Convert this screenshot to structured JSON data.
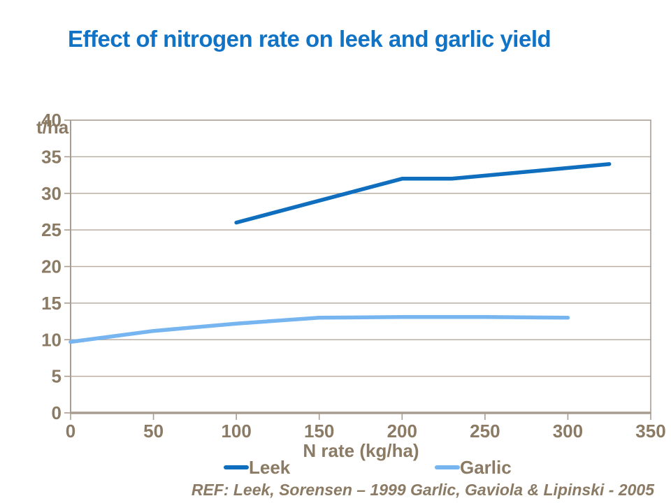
{
  "title": {
    "text": "Effect of nitrogen rate on leek and garlic yield",
    "color": "#1173C5"
  },
  "footer": {
    "ref": "REF: Leek, Sorensen – 1999 Garlic, Gaviola & Lipinski - 2005",
    "color": "#8B7A64"
  },
  "chart_data": {
    "type": "line",
    "title": "Effect of nitrogen rate on leek and garlic yield",
    "ylabel": "t/ha",
    "xlabel": "N rate (kg/ha)",
    "xlim": [
      0,
      350
    ],
    "ylim": [
      0,
      40
    ],
    "x_ticks": [
      0,
      50,
      100,
      150,
      200,
      250,
      300,
      350
    ],
    "y_ticks": [
      0,
      5,
      10,
      15,
      20,
      25,
      30,
      35,
      40
    ],
    "grid": "horizontal",
    "legend_position": "bottom-center",
    "series": [
      {
        "name": "Leek",
        "color": "#0F6EBD",
        "x": [
          100,
          200,
          230,
          325
        ],
        "values": [
          26,
          32,
          32,
          34
        ]
      },
      {
        "name": "Garlic",
        "color": "#76B5F0",
        "x": [
          0,
          50,
          100,
          150,
          200,
          250,
          300
        ],
        "values": [
          9.7,
          11.2,
          12.2,
          13,
          13.1,
          13.1,
          13
        ]
      }
    ],
    "axis_color": "#A89D90",
    "gridline_color": "#B9AFA4",
    "text_color": "#8B7A64"
  }
}
